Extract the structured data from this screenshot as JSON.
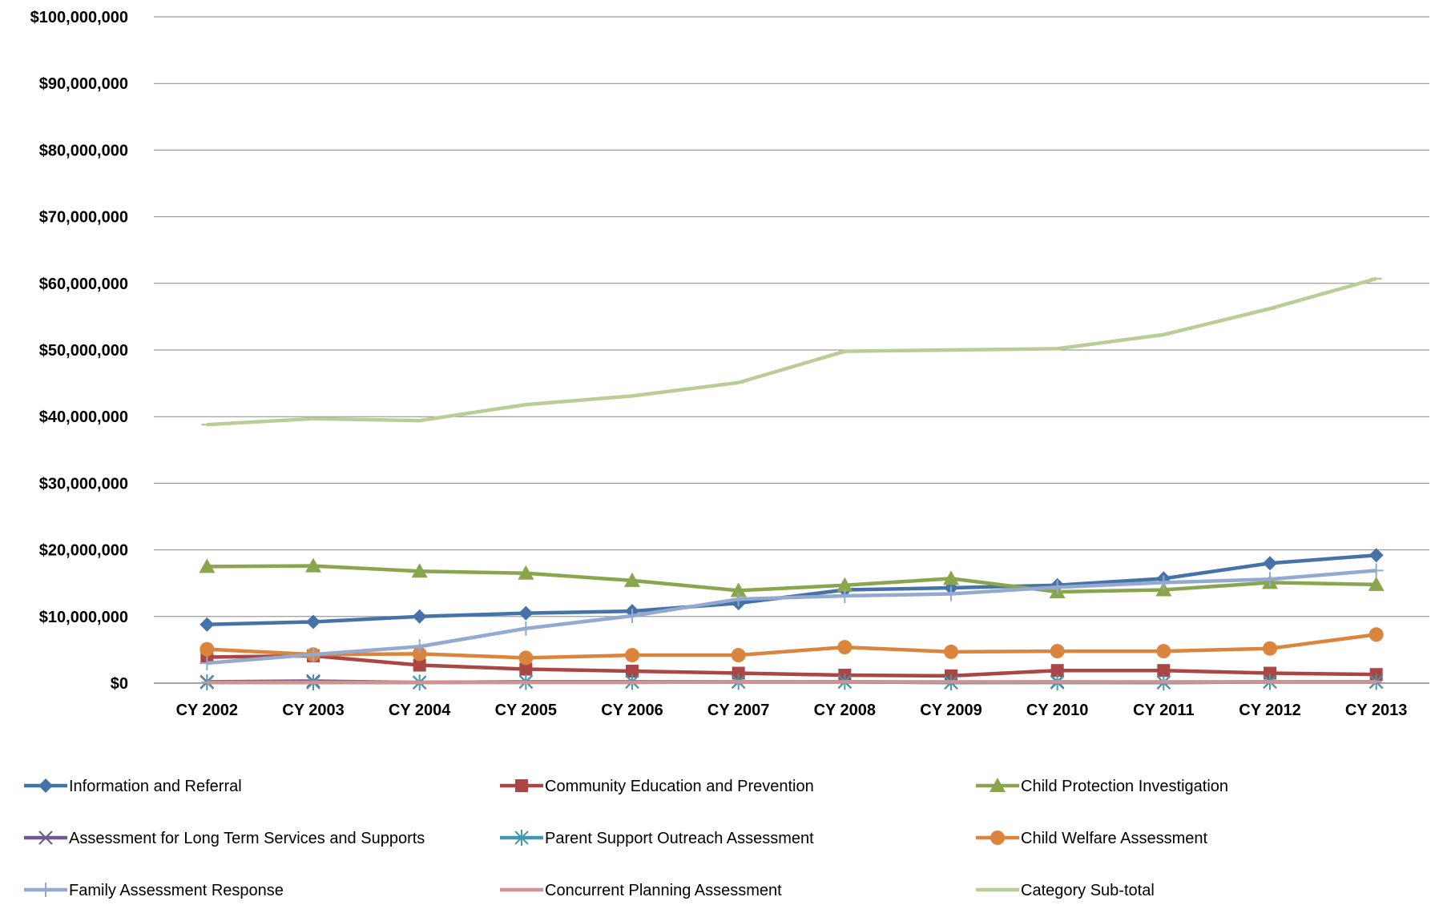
{
  "chart_data": {
    "type": "line",
    "title": "",
    "xlabel": "",
    "ylabel": "",
    "categories": [
      "CY 2002",
      "CY 2003",
      "CY 2004",
      "CY 2005",
      "CY 2006",
      "CY 2007",
      "CY 2008",
      "CY 2009",
      "CY 2010",
      "CY 2011",
      "CY 2012",
      "CY 2013"
    ],
    "ylim": [
      0,
      100000000
    ],
    "yticks": [
      {
        "value": 0,
        "label": "$0"
      },
      {
        "value": 10000000,
        "label": "$10,000,000"
      },
      {
        "value": 20000000,
        "label": "$20,000,000"
      },
      {
        "value": 30000000,
        "label": "$30,000,000"
      },
      {
        "value": 40000000,
        "label": "$40,000,000"
      },
      {
        "value": 50000000,
        "label": "$50,000,000"
      },
      {
        "value": 60000000,
        "label": "$60,000,000"
      },
      {
        "value": 70000000,
        "label": "$70,000,000"
      },
      {
        "value": 80000000,
        "label": "$80,000,000"
      },
      {
        "value": 90000000,
        "label": "$90,000,000"
      },
      {
        "value": 100000000,
        "label": "$100,000,000"
      }
    ],
    "grid": true,
    "legend_position": "bottom",
    "series": [
      {
        "name": "Information and Referral",
        "color": "#4572A7",
        "marker": "diamond",
        "values": [
          8800000,
          9200000,
          10000000,
          10500000,
          10800000,
          12000000,
          14000000,
          14300000,
          14700000,
          15700000,
          18000000,
          19200000
        ]
      },
      {
        "name": "Community Education and Prevention",
        "color": "#AA4643",
        "marker": "square",
        "values": [
          3900000,
          4100000,
          2700000,
          2100000,
          1800000,
          1500000,
          1200000,
          1100000,
          1900000,
          1900000,
          1500000,
          1300000
        ]
      },
      {
        "name": "Child Protection Investigation",
        "color": "#89A54E",
        "marker": "triangle",
        "values": [
          17500000,
          17600000,
          16800000,
          16500000,
          15400000,
          13900000,
          14700000,
          15700000,
          13700000,
          14000000,
          15100000,
          14800000
        ]
      },
      {
        "name": "Assessment for Long Term Services and Supports",
        "color": "#71588F",
        "marker": "x",
        "values": [
          200000,
          300000,
          100000,
          200000,
          200000,
          200000,
          200000,
          100000,
          200000,
          100000,
          200000,
          200000
        ]
      },
      {
        "name": "Parent Support Outreach Assessment",
        "color": "#4198AF",
        "marker": "star",
        "values": [
          100000,
          100000,
          100000,
          200000,
          200000,
          200000,
          200000,
          100000,
          100000,
          100000,
          200000,
          200000
        ]
      },
      {
        "name": "Child Welfare Assessment",
        "color": "#DB843D",
        "marker": "circle",
        "values": [
          5100000,
          4300000,
          4400000,
          3800000,
          4200000,
          4200000,
          5400000,
          4700000,
          4800000,
          4800000,
          5200000,
          7300000
        ]
      },
      {
        "name": "Family Assessment Response",
        "color": "#93A9CF",
        "marker": "plus",
        "values": [
          3000000,
          4300000,
          5500000,
          8200000,
          10100000,
          12600000,
          13100000,
          13400000,
          14400000,
          15100000,
          15600000,
          16900000
        ]
      },
      {
        "name": "Concurrent Planning Assessment",
        "color": "#D19392",
        "marker": "dash",
        "values": [
          100000,
          100000,
          100000,
          100000,
          100000,
          200000,
          200000,
          200000,
          200000,
          200000,
          200000,
          200000
        ]
      },
      {
        "name": "Category Sub-total",
        "color": "#B9CD96",
        "marker": "dash",
        "values": [
          38800000,
          39700000,
          39400000,
          41800000,
          43100000,
          45100000,
          49800000,
          50000000,
          50200000,
          52300000,
          56200000,
          60700000
        ]
      }
    ]
  }
}
